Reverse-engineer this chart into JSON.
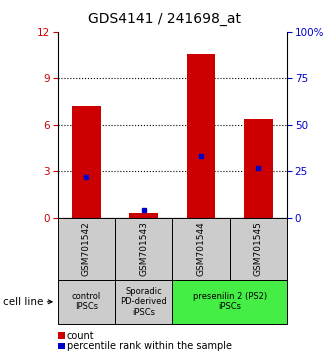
{
  "title": "GDS4141 / 241698_at",
  "samples": [
    "GSM701542",
    "GSM701543",
    "GSM701544",
    "GSM701545"
  ],
  "counts": [
    7.2,
    0.3,
    10.6,
    6.4
  ],
  "percentile_ranks_pct": [
    22,
    4,
    33,
    27
  ],
  "ylim_left": [
    0,
    12
  ],
  "ylim_right": [
    0,
    100
  ],
  "yticks_left": [
    0,
    3,
    6,
    9,
    12
  ],
  "yticks_right": [
    0,
    25,
    50,
    75,
    100
  ],
  "bar_color": "#cc0000",
  "dot_color": "#0000cc",
  "group_colors": [
    "#cccccc",
    "#cccccc",
    "#44ee44"
  ],
  "sample_box_color": "#cccccc",
  "title_fontsize": 10,
  "axis_label_color_left": "#cc0000",
  "axis_label_color_right": "#0000cc",
  "bar_width": 0.5,
  "grid_vals": [
    3,
    6,
    9
  ]
}
